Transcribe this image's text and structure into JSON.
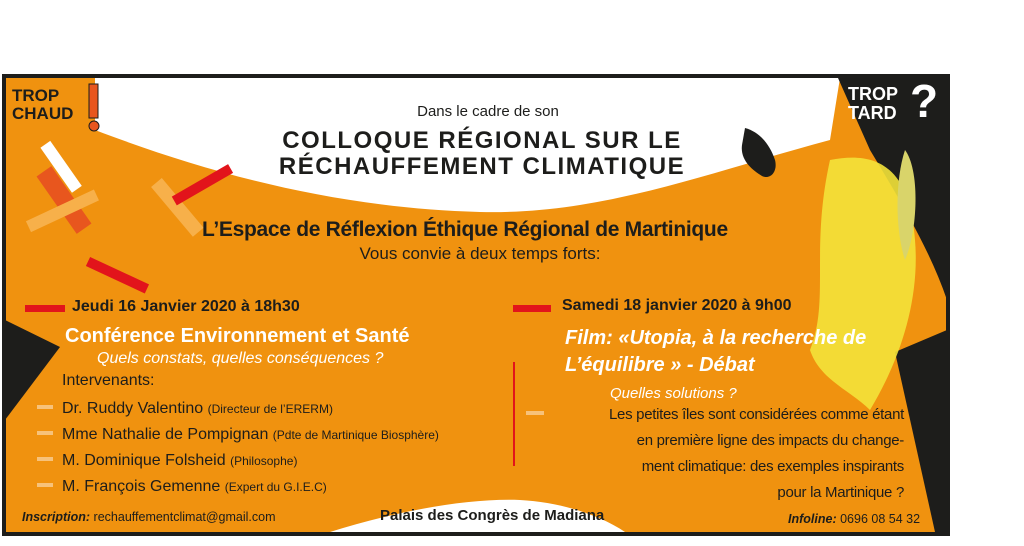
{
  "colors": {
    "orange": "#f0920f",
    "black": "#1d1d1b",
    "red": "#e2141b",
    "white": "#ffffff",
    "yellow": "#f3e33a"
  },
  "badges": {
    "left": {
      "line1": "TROP",
      "line2": "CHAUD",
      "mark": "!"
    },
    "right": {
      "line1": "TROP",
      "line2": "TARD",
      "mark": "?"
    }
  },
  "header": {
    "intro": "Dans le cadre de son",
    "title_line1": "COLLOQUE RÉGIONAL SUR LE",
    "title_line2": "RÉCHAUFFEMENT CLIMATIQUE",
    "organizer": "L’Espace de Réflexion Éthique Régional de Martinique",
    "invite": "Vous convie à deux temps forts:"
  },
  "event1": {
    "date": "Jeudi 16 Janvier 2020 à 18h30",
    "title": "Conférence Environnement et Santé",
    "subtitle": "Quels constats, quelles conséquences ?",
    "speakers_label": "Intervenants:",
    "speakers": [
      {
        "name": "Dr. Ruddy Valentino",
        "role": "(Directeur de l’ERERM)"
      },
      {
        "name": "Mme Nathalie de Pompignan",
        "role": "(Pdte de Martinique Biosphère)"
      },
      {
        "name": "M. Dominique Folsheid",
        "role": "(Philosophe)"
      },
      {
        "name": "M. François Gemenne",
        "role": "(Expert du G.I.E.C)"
      }
    ]
  },
  "event2": {
    "date": "Samedi 18 janvier 2020 à 9h00",
    "title_line1": "Film: «Utopia, à la recherche de",
    "title_line2": "L’équilibre » - Débat",
    "subtitle": "Quelles solutions ?",
    "description": [
      "Les petites îles sont considérées comme étant",
      "en première ligne des impacts du change-",
      "ment climatique: des exemples inspirants",
      "pour la Martinique ?"
    ]
  },
  "footer": {
    "inscription_label": "Inscription:",
    "inscription_email": "rechauffementclimat@gmail.com",
    "venue": "Palais des Congrès de Madiana",
    "infoline_label": "Infoline:",
    "infoline_number": "0696 08 54 32"
  }
}
